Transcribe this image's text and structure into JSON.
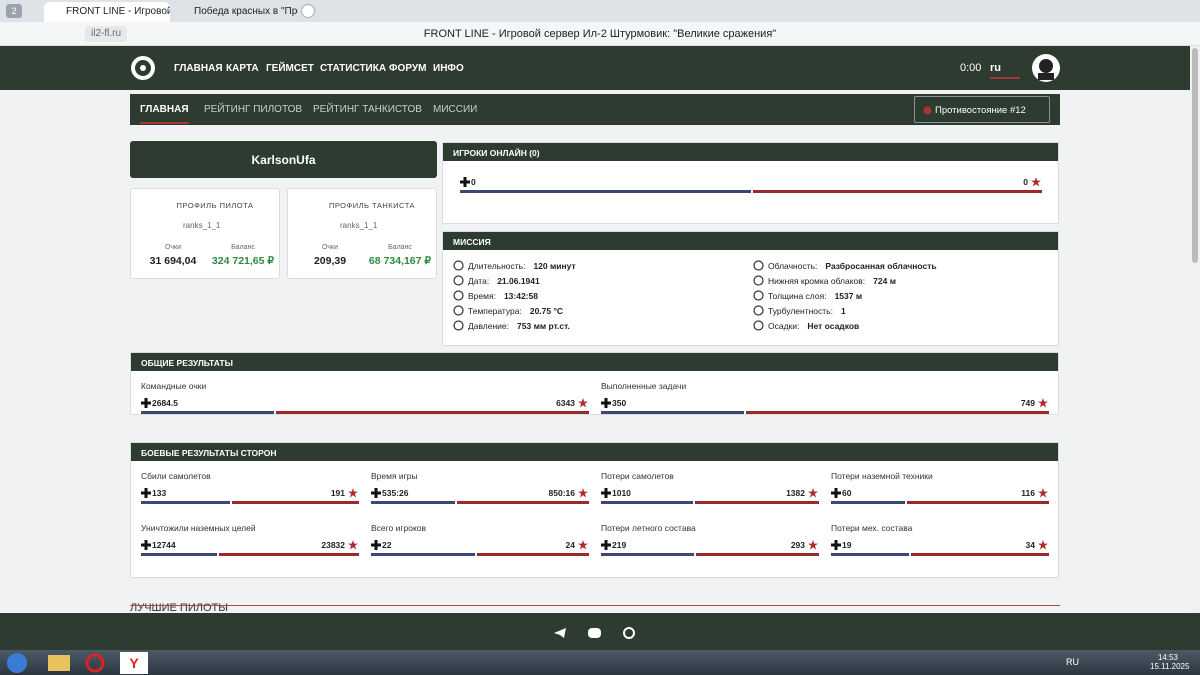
{
  "browser": {
    "tab_count": "2",
    "tabs": [
      "FRONT LINE - Игровой",
      "Победа красных в \"Прот"
    ],
    "url": "il2-fl.ru",
    "page_title": "FRONT LINE - Игровой сервер Ил-2 Штурмовик: \"Великие сражения\""
  },
  "header": {
    "nav": [
      "ГЛАВНАЯ",
      "КАРТА",
      "ГЕЙМСЕТ",
      "СТАТИСТИКА",
      "ФОРУМ",
      "ИНФО"
    ],
    "time": "0:00",
    "lang": "ru"
  },
  "subnav": {
    "items": [
      "ГЛАВНАЯ",
      "РЕЙТИНГ ПИЛОТОВ",
      "РЕЙТИНГ ТАНКИСТОВ",
      "МИССИИ"
    ],
    "button": "Противостояние #12"
  },
  "profile": {
    "name": "KarlsonUfa",
    "cards": [
      {
        "title": "ПРОФИЛЬ ПИЛОТА",
        "img_alt": "ranks_1_1",
        "points_label": "Очки",
        "points": "31 694,04",
        "balance_label": "Баланс",
        "balance": "324 721,65 ₽"
      },
      {
        "title": "ПРОФИЛЬ ТАНКИСТА",
        "img_alt": "ranks_1_1",
        "points_label": "Очки",
        "points": "209,39",
        "balance_label": "Баланс",
        "balance": "68 734,167 ₽"
      }
    ]
  },
  "online": {
    "title": "ИГРОКИ ОНЛАЙН (0)",
    "left": 0,
    "right": 0
  },
  "mission": {
    "title": "МИССИЯ",
    "left": [
      {
        "label": "Длительность:",
        "value": "120 минут"
      },
      {
        "label": "Дата:",
        "value": "21.06.1941"
      },
      {
        "label": "Время:",
        "value": "13:42:58"
      },
      {
        "label": "Температура:",
        "value": "20.75 °C"
      },
      {
        "label": "Давление:",
        "value": "753 мм рт.ст."
      }
    ],
    "right": [
      {
        "label": "Облачность:",
        "value": "Разбросанная облачность"
      },
      {
        "label": "Нижняя кромка облаков:",
        "value": "724 м"
      },
      {
        "label": "Толщина слоя:",
        "value": "1537 м"
      },
      {
        "label": "Турбулентность:",
        "value": "1"
      },
      {
        "label": "Осадки:",
        "value": "Нет осадков"
      }
    ]
  },
  "general": {
    "title": "ОБЩИЕ РЕЗУЛЬТАТЫ",
    "items": [
      {
        "label": "Командные очки",
        "left": 2684.5,
        "right": 6343
      },
      {
        "label": "Выполненные задачи",
        "left": 350,
        "right": 749
      }
    ]
  },
  "combat": {
    "title": "БОЕВЫЕ РЕЗУЛЬТАТЫ СТОРОН",
    "items": [
      {
        "label": "Сбили самолетов",
        "left": 133,
        "right": 191
      },
      {
        "label": "Время игры",
        "left": "535:26",
        "right": "850:16"
      },
      {
        "label": "Потери самолетов",
        "left": 1010,
        "right": 1382
      },
      {
        "label": "Потери наземной техники",
        "left": 60,
        "right": 116
      },
      {
        "label": "Уничтожили наземных целей",
        "left": 12744,
        "right": 23832
      },
      {
        "label": "Всего игроков",
        "left": 22,
        "right": 24
      },
      {
        "label": "Потери летного состава",
        "left": 219,
        "right": 293
      },
      {
        "label": "Потери мех. состава",
        "left": 19,
        "right": 34
      }
    ]
  },
  "best_pilots": "ЛУЧШИЕ ПИЛОТЫ",
  "taskbar": {
    "lang": "RU",
    "time": "14:53",
    "date": "15.11.2025"
  }
}
